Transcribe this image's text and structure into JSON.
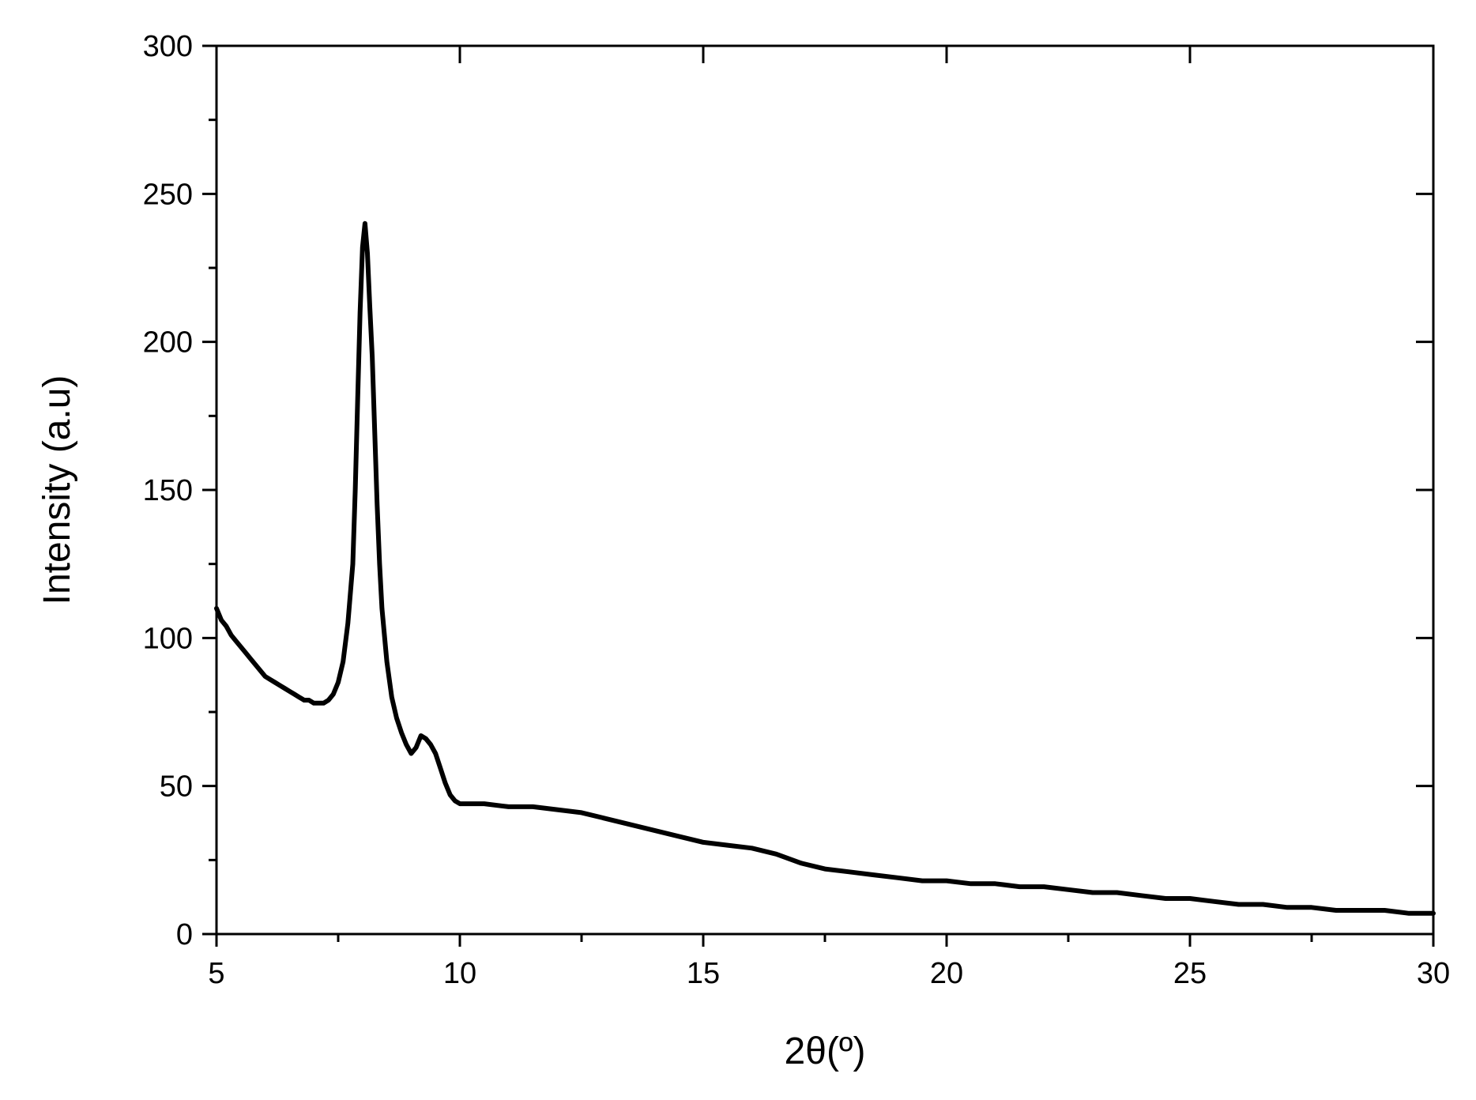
{
  "chart_data": {
    "type": "line",
    "xlabel": "2θ(º)",
    "ylabel": "Intensity (a.u)",
    "xlim": [
      5,
      30
    ],
    "ylim": [
      0,
      300
    ],
    "x_ticks": [
      5,
      10,
      15,
      20,
      25,
      30
    ],
    "y_ticks": [
      0,
      50,
      100,
      150,
      200,
      250,
      300
    ],
    "x_tick_labels": [
      "5",
      "10",
      "15",
      "20",
      "25",
      "30"
    ],
    "y_tick_labels": [
      "0",
      "50",
      "100",
      "150",
      "200",
      "250",
      "300"
    ],
    "grid": false,
    "line_color": "#000000",
    "series": [
      {
        "x": [
          5.0,
          5.1,
          5.2,
          5.3,
          5.4,
          5.5,
          5.6,
          5.7,
          5.8,
          5.9,
          6.0,
          6.1,
          6.2,
          6.3,
          6.4,
          6.5,
          6.6,
          6.7,
          6.8,
          6.9,
          7.0,
          7.1,
          7.2,
          7.3,
          7.4,
          7.5,
          7.6,
          7.7,
          7.8,
          7.85,
          7.9,
          7.95,
          8.0,
          8.05,
          8.1,
          8.15,
          8.2,
          8.25,
          8.3,
          8.35,
          8.4,
          8.5,
          8.6,
          8.7,
          8.8,
          8.9,
          9.0,
          9.1,
          9.2,
          9.3,
          9.4,
          9.5,
          9.6,
          9.7,
          9.8,
          9.9,
          10.0,
          10.5,
          11.0,
          11.5,
          12.0,
          12.5,
          13.0,
          13.5,
          14.0,
          14.5,
          15.0,
          15.5,
          16.0,
          16.5,
          17.0,
          17.5,
          18.0,
          18.5,
          19.0,
          19.5,
          20.0,
          20.5,
          21.0,
          21.5,
          22.0,
          22.5,
          23.0,
          23.5,
          24.0,
          24.5,
          25.0,
          25.5,
          26.0,
          26.5,
          27.0,
          27.5,
          28.0,
          28.5,
          29.0,
          29.5,
          30.0
        ],
        "y": [
          110,
          106,
          104,
          101,
          99,
          97,
          95,
          93,
          91,
          89,
          87,
          86,
          85,
          84,
          83,
          82,
          81,
          80,
          79,
          79,
          78,
          78,
          78,
          79,
          81,
          85,
          92,
          105,
          125,
          150,
          180,
          210,
          232,
          240,
          230,
          212,
          195,
          170,
          145,
          125,
          110,
          92,
          80,
          73,
          68,
          64,
          61,
          63,
          67,
          66,
          64,
          61,
          56,
          51,
          47,
          45,
          44,
          44,
          43,
          43,
          42,
          41,
          39,
          37,
          35,
          33,
          31,
          30,
          29,
          27,
          24,
          22,
          21,
          20,
          19,
          18,
          18,
          17,
          17,
          16,
          16,
          15,
          14,
          14,
          13,
          12,
          12,
          11,
          10,
          10,
          9,
          9,
          8,
          8,
          8,
          7,
          7
        ]
      }
    ]
  }
}
